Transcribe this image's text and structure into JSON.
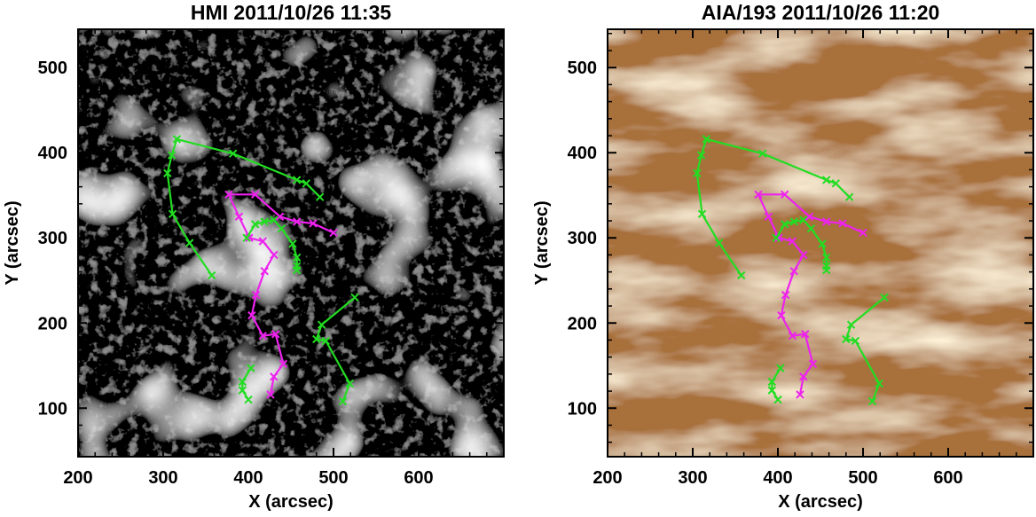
{
  "chart_data": [
    {
      "type": "line",
      "title": "HMI 2011/10/26 11:35",
      "xlabel": "X (arcsec)",
      "ylabel": "Y (arcsec)",
      "xlim": [
        200,
        700
      ],
      "ylim": [
        43,
        545
      ],
      "xticks": [
        200,
        300,
        400,
        500,
        600
      ],
      "yticks": [
        100,
        200,
        300,
        400,
        500
      ],
      "background": "magnetogram",
      "series": [
        {
          "color": "#22dd22",
          "x": [
            357,
            331,
            311,
            305,
            310,
            316,
            382,
            457,
            468,
            484
          ],
          "values": [
            256,
            294,
            328,
            376,
            397,
            416,
            399,
            368,
            364,
            348
          ]
        },
        {
          "color": "#ee22ee",
          "x": [
            500,
            476,
            457,
            437,
            408,
            377,
            389,
            401,
            417,
            430,
            419,
            409,
            404,
            417,
            432,
            441,
            430,
            426
          ],
          "values": [
            306,
            317,
            319,
            325,
            351,
            351,
            325,
            300,
            296,
            280,
            261,
            233,
            209,
            185,
            187,
            152,
            137,
            116
          ]
        },
        {
          "color": "#22dd22",
          "x": [
            398,
            408,
            419,
            430,
            439,
            452,
            457,
            457,
            457
          ],
          "values": [
            300,
            316,
            319,
            321,
            311,
            293,
            277,
            267,
            262
          ]
        },
        {
          "color": "#22dd22",
          "x": [
            525,
            486,
            480,
            491,
            519,
            511
          ],
          "values": [
            230,
            198,
            181,
            179,
            129,
            108
          ]
        },
        {
          "color": "#22dd22",
          "x": [
            403,
            393,
            393,
            400
          ],
          "values": [
            147,
            131,
            121,
            110
          ]
        }
      ]
    },
    {
      "type": "line",
      "title": "AIA/193 2011/10/26 11:20",
      "xlabel": "X (arcsec)",
      "ylabel": "Y (arcsec)",
      "xlim": [
        200,
        700
      ],
      "ylim": [
        43,
        545
      ],
      "xticks": [
        200,
        300,
        400,
        500,
        600
      ],
      "yticks": [
        100,
        200,
        300,
        400,
        500
      ],
      "background": "euv",
      "series": [
        {
          "color": "#22dd22",
          "x": [
            357,
            331,
            311,
            305,
            310,
            316,
            382,
            457,
            468,
            484
          ],
          "values": [
            256,
            294,
            328,
            376,
            397,
            416,
            399,
            368,
            364,
            348
          ]
        },
        {
          "color": "#ee22ee",
          "x": [
            500,
            476,
            457,
            437,
            408,
            377,
            389,
            401,
            417,
            430,
            419,
            409,
            404,
            417,
            432,
            441,
            430,
            426
          ],
          "values": [
            306,
            317,
            319,
            325,
            351,
            351,
            325,
            300,
            296,
            280,
            261,
            233,
            209,
            185,
            187,
            152,
            137,
            116
          ]
        },
        {
          "color": "#22dd22",
          "x": [
            398,
            408,
            419,
            430,
            439,
            452,
            457,
            457,
            457
          ],
          "values": [
            300,
            316,
            319,
            321,
            311,
            293,
            277,
            267,
            262
          ]
        },
        {
          "color": "#22dd22",
          "x": [
            525,
            486,
            480,
            491,
            519,
            511
          ],
          "values": [
            230,
            198,
            181,
            179,
            129,
            108
          ]
        },
        {
          "color": "#22dd22",
          "x": [
            403,
            393,
            393,
            400
          ],
          "values": [
            147,
            131,
            121,
            110
          ]
        }
      ]
    }
  ]
}
